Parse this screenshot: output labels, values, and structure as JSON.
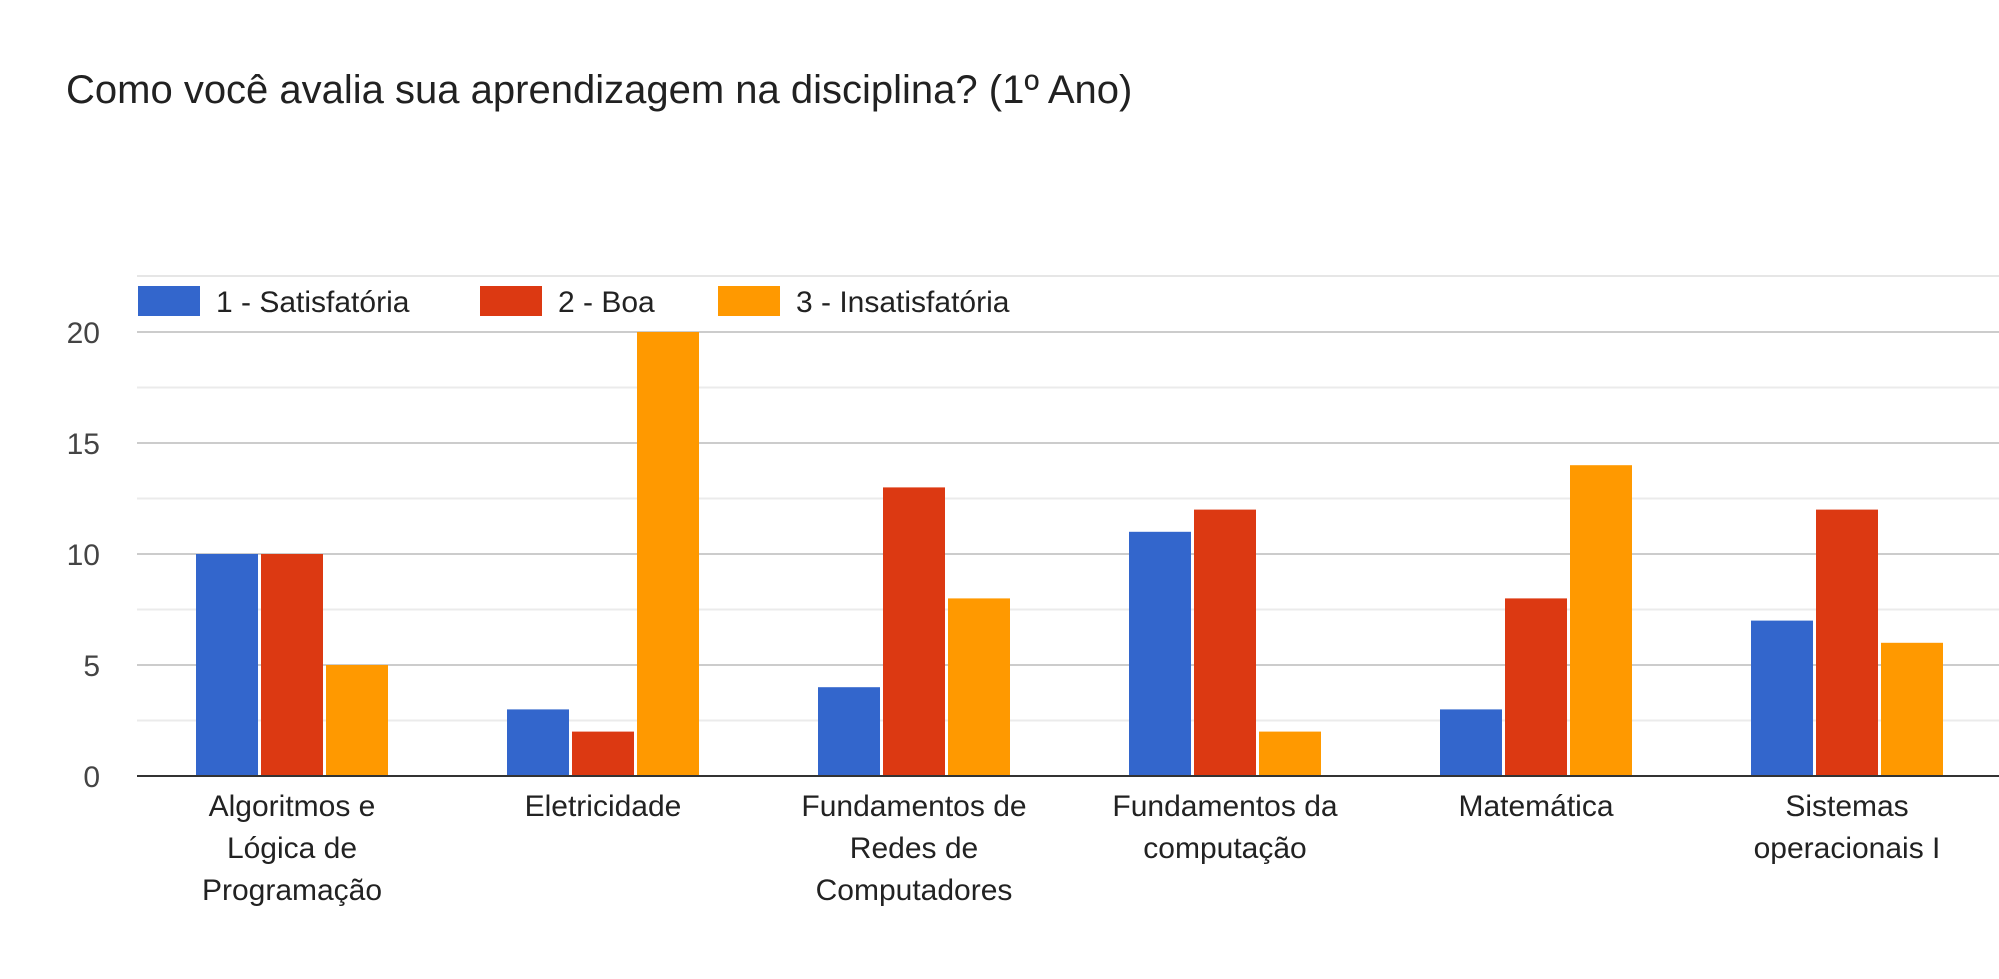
{
  "chart_data": {
    "type": "bar",
    "title": "Como você avalia sua aprendizagem na disciplina? (1º Ano)",
    "xlabel": "",
    "ylabel": "",
    "ylim": [
      0,
      20
    ],
    "yticks": [
      0,
      5,
      10,
      15,
      20
    ],
    "grid": true,
    "legend_position": "top-left",
    "categories": [
      [
        "Algoritmos e",
        "Lógica de",
        "Programação"
      ],
      [
        "Eletricidade"
      ],
      [
        "Fundamentos de",
        "Redes de",
        "Computadores"
      ],
      [
        "Fundamentos da",
        "computação"
      ],
      [
        "Matemática"
      ],
      [
        "Sistemas",
        "operacionais I"
      ]
    ],
    "series": [
      {
        "name": "1 - Satisfatória",
        "color": "#3366cc",
        "values": [
          10,
          3,
          4,
          11,
          3,
          7
        ]
      },
      {
        "name": "2 - Boa",
        "color": "#dc3912",
        "values": [
          10,
          2,
          13,
          12,
          8,
          12
        ]
      },
      {
        "name": "3 - Insatisfatória",
        "color": "#ff9900",
        "values": [
          5,
          20,
          8,
          2,
          14,
          6
        ]
      }
    ]
  }
}
